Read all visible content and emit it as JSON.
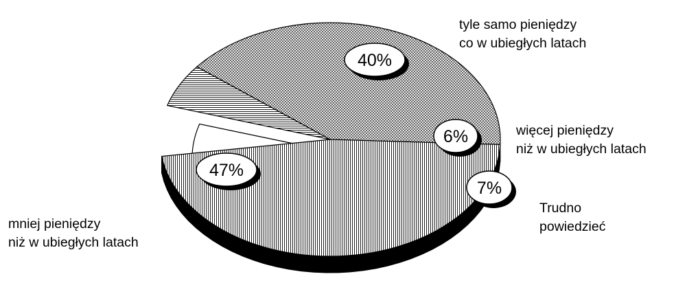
{
  "chart_data": {
    "type": "pie",
    "title": "",
    "legend": "none",
    "slices": [
      {
        "label_lines": [
          "tyle samo pieniędzy",
          "co w ubiegłych latach"
        ],
        "value": 40,
        "value_label": "40%",
        "pattern": "crosshatch-fine",
        "exploded": false
      },
      {
        "label_lines": [
          "więcej pieniędzy",
          "niż w ubiegłych latach"
        ],
        "value": 6,
        "value_label": "6%",
        "pattern": "horizontal-lines",
        "exploded": false
      },
      {
        "label_lines": [
          "Trudno",
          "powiedzieć"
        ],
        "value": 7,
        "value_label": "7%",
        "pattern": "solid-white",
        "exploded": true
      },
      {
        "label_lines": [
          "mniej pieniędzy",
          "niż w ubiegłych latach"
        ],
        "value": 47,
        "value_label": "47%",
        "pattern": "vertical-lines",
        "exploded": false
      }
    ]
  },
  "colors": {
    "outline": "#000000",
    "depth_side": "#000000",
    "exploded_side": "#808080",
    "exploded_fill": "#ffffff",
    "bubble_fill": "#ffffff",
    "bubble_shadow": "#000000"
  }
}
